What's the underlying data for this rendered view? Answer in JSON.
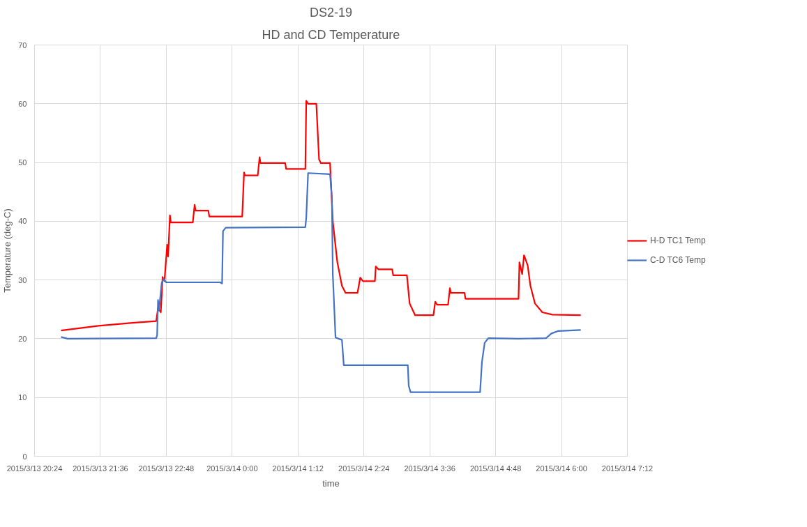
{
  "chart_data": {
    "type": "line",
    "title": "DS2-19",
    "subtitle": "HD and CD Temperature",
    "xlabel": "time",
    "ylabel": "Temperature (deg-C)",
    "xlim": [
      "2015-03-13T20:24",
      "2015-03-14T07:12"
    ],
    "xticks": [
      {
        "value": "2015-03-13T20:24",
        "label": "2015/3/13 20:24"
      },
      {
        "value": "2015-03-13T21:36",
        "label": "2015/3/13 21:36"
      },
      {
        "value": "2015-03-13T22:48",
        "label": "2015/3/13 22:48"
      },
      {
        "value": "2015-03-14T00:00",
        "label": "2015/3/14 0:00"
      },
      {
        "value": "2015-03-14T01:12",
        "label": "2015/3/14 1:12"
      },
      {
        "value": "2015-03-14T02:24",
        "label": "2015/3/14 2:24"
      },
      {
        "value": "2015-03-14T03:36",
        "label": "2015/3/14 3:36"
      },
      {
        "value": "2015-03-14T04:48",
        "label": "2015/3/14 4:48"
      },
      {
        "value": "2015-03-14T06:00",
        "label": "2015/3/14 6:00"
      },
      {
        "value": "2015-03-14T07:12",
        "label": "2015/3/14 7:12"
      }
    ],
    "ylim": [
      0,
      70
    ],
    "yticks": [
      0,
      10,
      20,
      30,
      40,
      50,
      60,
      70
    ],
    "grid": true,
    "legend": "right",
    "marker": "none",
    "line_style": "solid",
    "series": [
      {
        "name": "H-D TC1 Temp",
        "color": "#ff0000",
        "x": [
          "2015-03-13T20:53",
          "2015-03-13T21:34",
          "2015-03-13T22:11",
          "2015-03-13T22:37",
          "2015-03-13T22:39",
          "2015-03-13T22:42",
          "2015-03-13T22:44",
          "2015-03-13T22:46",
          "2015-03-13T22:49",
          "2015-03-13T22:50",
          "2015-03-13T22:52",
          "2015-03-13T22:53",
          "2015-03-13T23:17",
          "2015-03-13T23:19",
          "2015-03-13T23:20",
          "2015-03-13T23:34",
          "2015-03-13T23:35",
          "2015-03-14T00:11",
          "2015-03-14T00:13",
          "2015-03-14T00:14",
          "2015-03-14T00:28",
          "2015-03-14T00:30",
          "2015-03-14T00:31",
          "2015-03-14T00:58",
          "2015-03-14T00:59",
          "2015-03-14T01:20",
          "2015-03-14T01:21",
          "2015-03-14T01:23",
          "2015-03-14T01:32",
          "2015-03-14T01:35",
          "2015-03-14T01:37",
          "2015-03-14T01:47",
          "2015-03-14T01:50",
          "2015-03-14T01:55",
          "2015-03-14T02:00",
          "2015-03-14T02:04",
          "2015-03-14T02:17",
          "2015-03-14T02:20",
          "2015-03-14T02:23",
          "2015-03-14T02:36",
          "2015-03-14T02:37",
          "2015-03-14T02:40",
          "2015-03-14T02:55",
          "2015-03-14T02:56",
          "2015-03-14T03:11",
          "2015-03-14T03:14",
          "2015-03-14T03:20",
          "2015-03-14T03:40",
          "2015-03-14T03:42",
          "2015-03-14T03:44",
          "2015-03-14T03:56",
          "2015-03-14T03:58",
          "2015-03-14T03:59",
          "2015-03-14T04:14",
          "2015-03-14T04:15",
          "2015-03-14T05:13",
          "2015-03-14T05:14",
          "2015-03-14T05:17",
          "2015-03-14T05:19",
          "2015-03-14T05:23",
          "2015-03-14T05:26",
          "2015-03-14T05:31",
          "2015-03-14T05:39",
          "2015-03-14T05:50",
          "2015-03-14T06:21"
        ],
        "values": [
          21.4,
          22.2,
          22.7,
          23.0,
          25.2,
          24.5,
          30.5,
          29.8,
          36,
          34,
          41,
          39.8,
          39.8,
          42.8,
          41.8,
          41.8,
          40.8,
          40.8,
          48.3,
          47.8,
          47.8,
          50.9,
          49.9,
          49.9,
          48.9,
          48.9,
          60.5,
          60.0,
          60.0,
          50.5,
          49.9,
          49.9,
          40,
          33,
          29,
          27.8,
          27.8,
          30.4,
          29.8,
          29.8,
          32.3,
          31.8,
          31.8,
          30.8,
          30.8,
          26,
          24,
          24,
          26.3,
          25.8,
          25.8,
          28.6,
          27.8,
          27.8,
          26.8,
          26.8,
          33,
          31,
          34.2,
          32.5,
          29,
          26,
          24.5,
          24.1,
          24.0
        ]
      },
      {
        "name": "C-D TC6 Temp",
        "color": "#4472c4",
        "x": [
          "2015-03-13T20:53",
          "2015-03-13T21:00",
          "2015-03-13T22:37",
          "2015-03-13T22:38",
          "2015-03-13T22:39",
          "2015-03-13T22:40",
          "2015-03-13T22:43",
          "2015-03-13T22:45",
          "2015-03-13T22:48",
          "2015-03-13T23:47",
          "2015-03-13T23:49",
          "2015-03-13T23:50",
          "2015-03-13T23:53",
          "2015-03-14T01:20",
          "2015-03-14T01:21",
          "2015-03-14T01:23",
          "2015-03-14T01:47",
          "2015-03-14T01:49",
          "2015-03-14T01:50",
          "2015-03-14T01:53",
          "2015-03-14T02:00",
          "2015-03-14T02:02",
          "2015-03-14T02:50",
          "2015-03-14T03:12",
          "2015-03-14T03:13",
          "2015-03-14T03:15",
          "2015-03-14T04:31",
          "2015-03-14T04:33",
          "2015-03-14T04:36",
          "2015-03-14T04:40",
          "2015-03-14T05:13",
          "2015-03-14T05:43",
          "2015-03-14T05:49",
          "2015-03-14T05:56",
          "2015-03-14T06:21"
        ],
        "values": [
          20.3,
          20.0,
          20.1,
          20.6,
          26.6,
          24.8,
          29.5,
          30.2,
          29.6,
          29.6,
          29.4,
          38.3,
          38.9,
          39.0,
          40.6,
          48.2,
          48.0,
          44,
          31,
          20.2,
          19.8,
          15.5,
          15.5,
          15.5,
          12,
          10.9,
          10.9,
          16,
          19.3,
          20.1,
          20.0,
          20.1,
          20.9,
          21.3,
          21.5
        ]
      }
    ]
  }
}
